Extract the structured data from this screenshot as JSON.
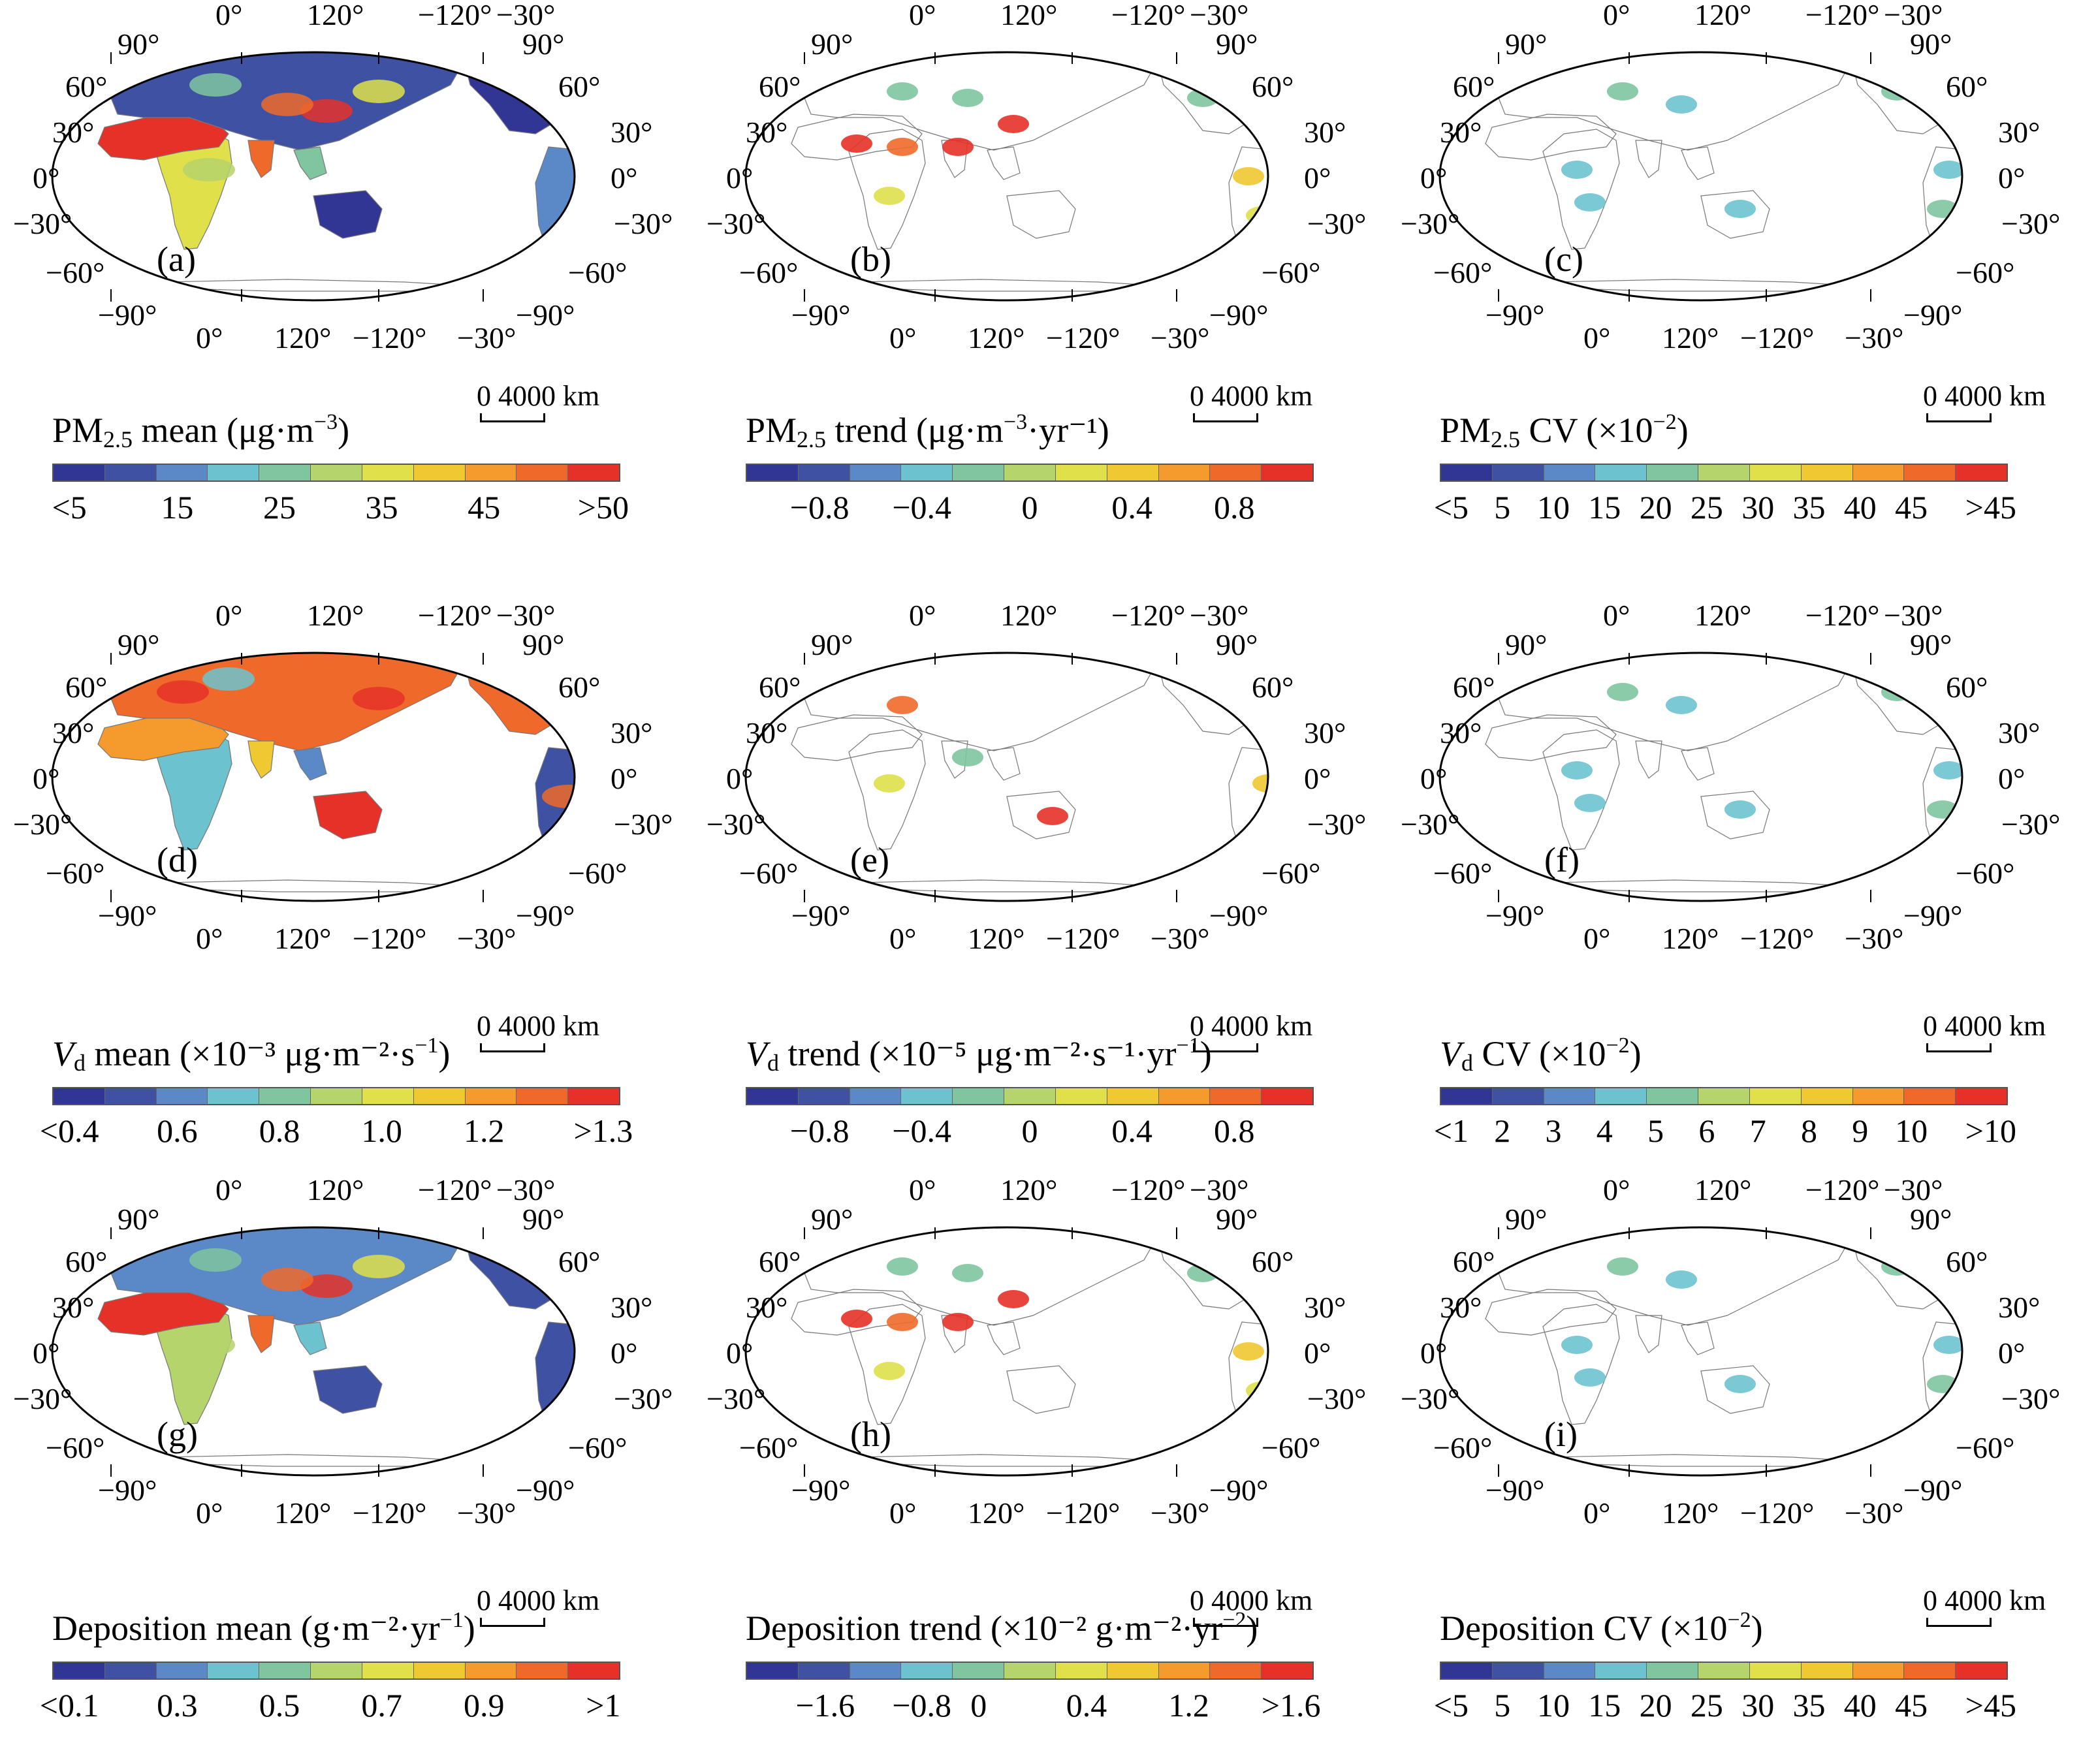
{
  "colors": [
    "#313695",
    "#3f51a3",
    "#5b89c8",
    "#6cc3cf",
    "#7fc5a0",
    "#b5d46c",
    "#dfe04a",
    "#f0c832",
    "#f59a2c",
    "#ef6a2a",
    "#e63128"
  ],
  "graticule": {
    "top_lon": [
      "0°",
      "120°",
      "−120°",
      "−30°"
    ],
    "bottom_lon": [
      "0°",
      "120°",
      "−120°",
      "−30°"
    ],
    "left_lat": [
      "90°",
      "60°",
      "30°",
      "0°",
      "−30°",
      "−60°",
      "−90°"
    ],
    "right_lat": [
      "90°",
      "60°",
      "30°",
      "0°",
      "−30°",
      "−60°",
      "−90°"
    ]
  },
  "scale_label": "0  4000 km",
  "panels": [
    {
      "label": "(a)",
      "title_pre": "PM",
      "title_sub": "2.5",
      "title_post": " mean (μg·m",
      "title_sup": "−3",
      "title_end": ")",
      "ticks": [
        "<5",
        "15",
        "25",
        "35",
        "45",
        ">50"
      ],
      "style": "full-a"
    },
    {
      "label": "(b)",
      "title_pre": "PM",
      "title_sub": "2.5",
      "title_post": " trend (μg·m",
      "title_sup": "−3",
      "title_end": "·yr⁻¹)",
      "ticks": [
        "−0.8",
        "−0.4",
        "0",
        "0.4",
        "0.8"
      ],
      "style": "sparse-b"
    },
    {
      "label": "(c)",
      "title_pre": "PM",
      "title_sub": "2.5",
      "title_post": " CV (×10",
      "title_sup": "−2",
      "title_end": ")",
      "ticks": [
        "<5",
        "5",
        "10",
        "15",
        "20",
        "25",
        "30",
        "35",
        "40",
        "45",
        ">45"
      ],
      "style": "sparse-c"
    },
    {
      "label": "(d)",
      "title_pre": "V",
      "title_sub": "d",
      "title_post": " mean (×10⁻³ μg·m⁻²·s",
      "title_sup": "−1",
      "title_end": ")",
      "ticks": [
        "<0.4",
        "0.6",
        "0.8",
        "1.0",
        "1.2",
        ">1.3"
      ],
      "style": "full-d"
    },
    {
      "label": "(e)",
      "title_pre": "V",
      "title_sub": "d",
      "title_post": " trend (×10⁻⁵ μg·m⁻²·s⁻¹·yr",
      "title_sup": "−1",
      "title_end": ")",
      "ticks": [
        "−0.8",
        "−0.4",
        "0",
        "0.4",
        "0.8"
      ],
      "style": "sparse-e"
    },
    {
      "label": "(f)",
      "title_pre": "V",
      "title_sub": "d",
      "title_post": " CV (×10",
      "title_sup": "−2",
      "title_end": ")",
      "ticks": [
        "<1",
        "2",
        "3",
        "4",
        "5",
        "6",
        "7",
        "8",
        "9",
        "10",
        ">10"
      ],
      "style": "sparse-f"
    },
    {
      "label": "(g)",
      "title_pre": "Deposition mean (g·m⁻²·yr",
      "title_sub": "",
      "title_post": "",
      "title_sup": "−1",
      "title_end": ")",
      "ticks": [
        "<0.1",
        "0.3",
        "0.5",
        "0.7",
        "0.9",
        ">1"
      ],
      "style": "full-g"
    },
    {
      "label": "(h)",
      "title_pre": "Deposition trend (×10⁻² g·m⁻²·yr",
      "title_sub": "",
      "title_post": "",
      "title_sup": "−2",
      "title_end": ")",
      "ticks": [
        "−1.6",
        "−0.8",
        "0",
        "0.4",
        "1.2",
        ">1.6"
      ],
      "style": "sparse-h"
    },
    {
      "label": "(i)",
      "title_pre": "Deposition CV (×10",
      "title_sub": "",
      "title_post": "",
      "title_sup": "−2",
      "title_end": ")",
      "ticks": [
        "<5",
        "5",
        "10",
        "15",
        "20",
        "25",
        "30",
        "35",
        "40",
        "45",
        ">45"
      ],
      "style": "sparse-i"
    }
  ]
}
